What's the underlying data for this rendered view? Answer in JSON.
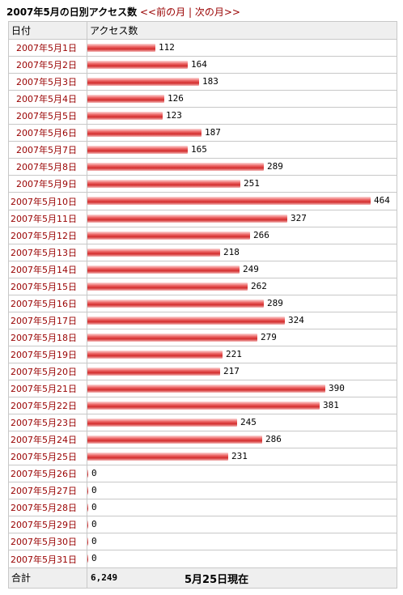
{
  "title": {
    "main": "2007年5月の日別アクセス数",
    "prev_link": "<<前の月",
    "separator": "|",
    "next_link": "次の月>>"
  },
  "columns": [
    "日付",
    "アクセス数"
  ],
  "chart_data": {
    "type": "bar",
    "orientation": "horizontal",
    "xlim": [
      0,
      464
    ],
    "categories": [
      "2007年5月1日",
      "2007年5月2日",
      "2007年5月3日",
      "2007年5月4日",
      "2007年5月5日",
      "2007年5月6日",
      "2007年5月7日",
      "2007年5月8日",
      "2007年5月9日",
      "2007年5月10日",
      "2007年5月11日",
      "2007年5月12日",
      "2007年5月13日",
      "2007年5月14日",
      "2007年5月15日",
      "2007年5月16日",
      "2007年5月17日",
      "2007年5月18日",
      "2007年5月19日",
      "2007年5月20日",
      "2007年5月21日",
      "2007年5月22日",
      "2007年5月23日",
      "2007年5月24日",
      "2007年5月25日",
      "2007年5月26日",
      "2007年5月27日",
      "2007年5月28日",
      "2007年5月29日",
      "2007年5月30日",
      "2007年5月31日"
    ],
    "values": [
      112,
      164,
      183,
      126,
      123,
      187,
      165,
      289,
      251,
      464,
      327,
      266,
      218,
      249,
      262,
      289,
      324,
      279,
      221,
      217,
      390,
      381,
      245,
      286,
      231,
      0,
      0,
      0,
      0,
      0,
      0
    ],
    "bar_color": "#d32d2d"
  },
  "footer": {
    "label": "合計",
    "total": "6,249",
    "note": "5月25日現在"
  }
}
